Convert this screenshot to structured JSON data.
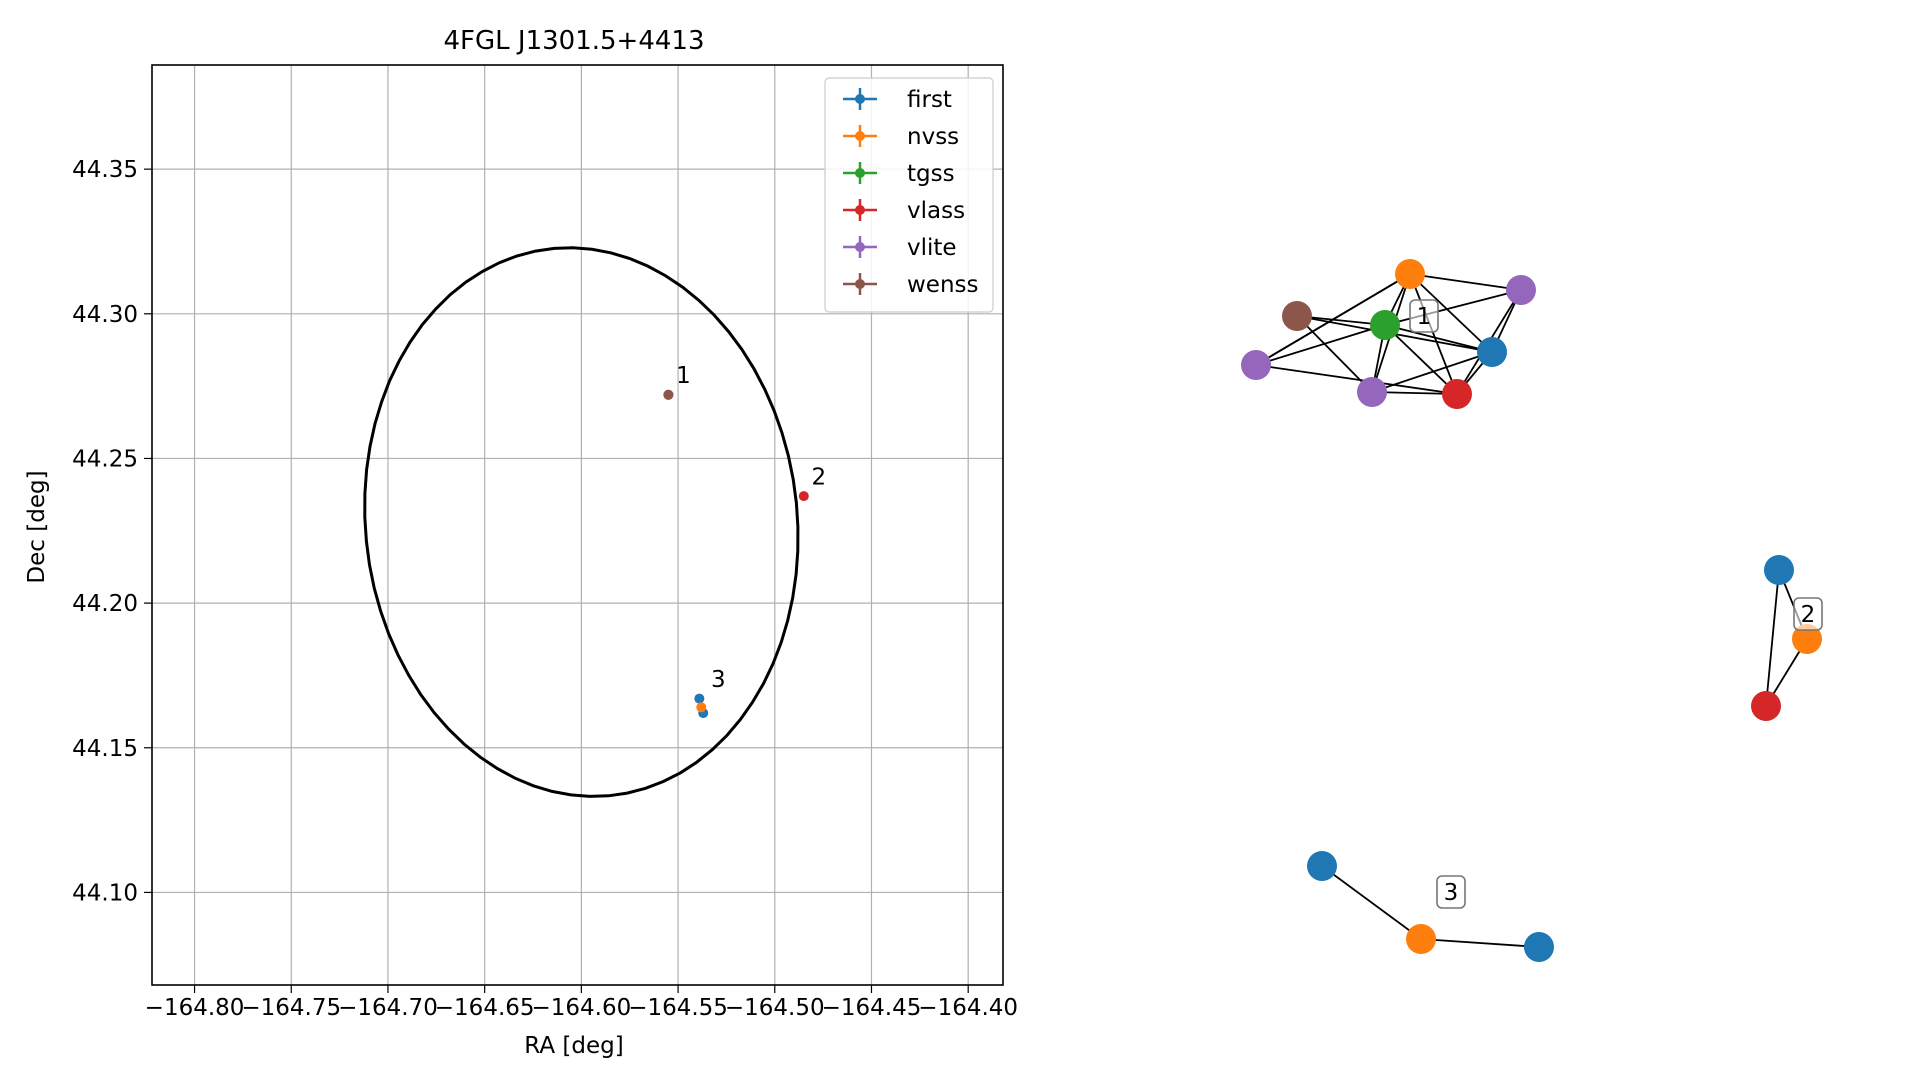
{
  "chart_data": [
    {
      "type": "scatter",
      "title": "4FGL J1301.5+4413",
      "xlabel": "RA [deg]",
      "ylabel": "Dec [deg]",
      "xlim": [
        -164.822,
        -164.382
      ],
      "ylim": [
        44.068,
        44.386
      ],
      "grid": true,
      "legend_position": "top-right",
      "x_ticks": [
        -164.8,
        -164.75,
        -164.7,
        -164.65,
        -164.6,
        -164.55,
        -164.5,
        -164.45,
        -164.4
      ],
      "x_tick_labels": [
        "−164.80",
        "−164.75",
        "−164.70",
        "−164.65",
        "−164.60",
        "−164.55",
        "−164.50",
        "−164.45",
        "−164.40"
      ],
      "y_ticks": [
        44.1,
        44.15,
        44.2,
        44.25,
        44.3,
        44.35
      ],
      "y_tick_labels": [
        "44.10",
        "44.15",
        "44.20",
        "44.25",
        "44.30",
        "44.35"
      ],
      "series": [
        {
          "name": "first",
          "color": "#1f77b4",
          "points": [
            {
              "x": -164.539,
              "y": 44.167
            },
            {
              "x": -164.537,
              "y": 44.162
            }
          ]
        },
        {
          "name": "nvss",
          "color": "#ff7f0e",
          "points": [
            {
              "x": -164.538,
              "y": 44.164
            }
          ]
        },
        {
          "name": "tgss",
          "color": "#2ca02c",
          "points": [
            {
              "x": -164.555,
              "y": 44.272
            }
          ]
        },
        {
          "name": "vlass",
          "color": "#d62728",
          "points": [
            {
              "x": -164.485,
              "y": 44.237
            }
          ]
        },
        {
          "name": "vlite",
          "color": "#9467bd",
          "points": [
            {
              "x": -164.555,
              "y": 44.272
            }
          ]
        },
        {
          "name": "wenss",
          "color": "#8c564b",
          "points": [
            {
              "x": -164.555,
              "y": 44.272
            }
          ]
        }
      ],
      "annotations": [
        {
          "text": "1",
          "x": -164.551,
          "y": 44.276
        },
        {
          "text": "2",
          "x": -164.481,
          "y": 44.241
        },
        {
          "text": "3",
          "x": -164.533,
          "y": 44.171
        }
      ],
      "ellipse": {
        "center_x": -164.6,
        "center_y": 44.228,
        "semi_axis_x": 0.1225,
        "semi_axis_y": 0.1027,
        "rotation_deg": -25,
        "color": "#000000"
      }
    },
    {
      "type": "network",
      "groups": [
        {
          "label": "1",
          "nodes": [
            {
              "id": "a",
              "color": "#ff7f0e"
            },
            {
              "id": "b",
              "color": "#9467bd"
            },
            {
              "id": "c",
              "color": "#8c564b"
            },
            {
              "id": "d",
              "color": "#2ca02c"
            },
            {
              "id": "e",
              "color": "#1f77b4"
            },
            {
              "id": "f",
              "color": "#9467bd"
            },
            {
              "id": "g",
              "color": "#9467bd"
            },
            {
              "id": "h",
              "color": "#d62728"
            }
          ],
          "edges": [
            [
              "a",
              "d"
            ],
            [
              "a",
              "g"
            ],
            [
              "a",
              "h"
            ],
            [
              "a",
              "e"
            ],
            [
              "a",
              "f"
            ],
            [
              "a",
              "b"
            ],
            [
              "c",
              "d"
            ],
            [
              "c",
              "e"
            ],
            [
              "c",
              "g"
            ],
            [
              "d",
              "b"
            ],
            [
              "d",
              "e"
            ],
            [
              "d",
              "h"
            ],
            [
              "d",
              "g"
            ],
            [
              "f",
              "a"
            ],
            [
              "f",
              "d"
            ],
            [
              "f",
              "h"
            ],
            [
              "b",
              "e"
            ],
            [
              "b",
              "h"
            ],
            [
              "e",
              "g"
            ],
            [
              "e",
              "h"
            ],
            [
              "g",
              "h"
            ]
          ]
        },
        {
          "label": "2",
          "nodes": [
            {
              "id": "p",
              "color": "#1f77b4"
            },
            {
              "id": "q",
              "color": "#ff7f0e"
            },
            {
              "id": "r",
              "color": "#d62728"
            }
          ],
          "edges": [
            [
              "p",
              "q"
            ],
            [
              "p",
              "r"
            ],
            [
              "q",
              "r"
            ]
          ]
        },
        {
          "label": "3",
          "nodes": [
            {
              "id": "s",
              "color": "#1f77b4"
            },
            {
              "id": "t",
              "color": "#ff7f0e"
            },
            {
              "id": "u",
              "color": "#1f77b4"
            }
          ],
          "edges": [
            [
              "s",
              "t"
            ],
            [
              "t",
              "u"
            ]
          ]
        }
      ]
    }
  ]
}
